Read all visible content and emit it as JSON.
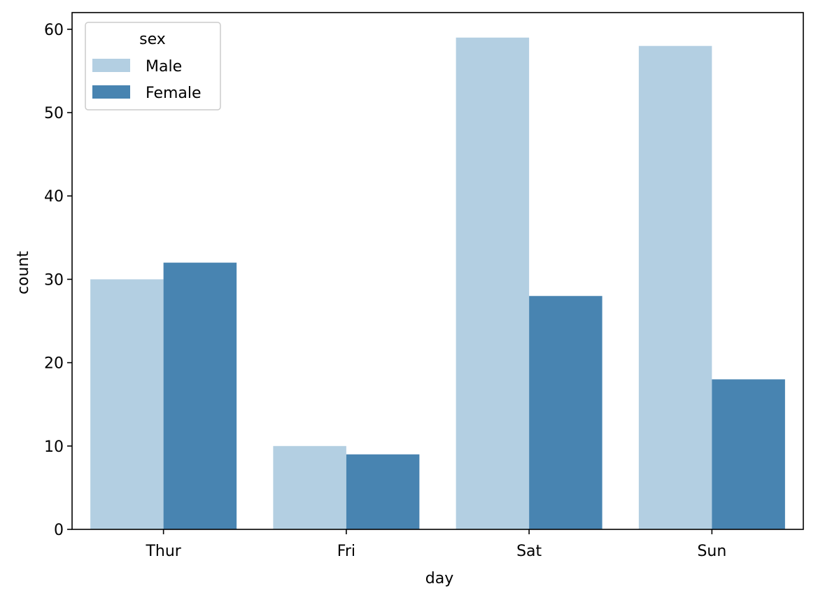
{
  "chart_data": {
    "type": "bar",
    "title": "",
    "xlabel": "day",
    "ylabel": "count",
    "categories": [
      "Thur",
      "Fri",
      "Sat",
      "Sun"
    ],
    "series": [
      {
        "name": "Male",
        "values": [
          30,
          10,
          59,
          58
        ],
        "color": "#b3cfe2"
      },
      {
        "name": "Female",
        "values": [
          32,
          9,
          28,
          18
        ],
        "color": "#4884b1"
      }
    ],
    "ylim": [
      0,
      62
    ],
    "yticks": [
      0,
      10,
      20,
      30,
      40,
      50,
      60
    ],
    "grid": false,
    "legend": {
      "title": "sex",
      "placement": "top-left"
    }
  }
}
